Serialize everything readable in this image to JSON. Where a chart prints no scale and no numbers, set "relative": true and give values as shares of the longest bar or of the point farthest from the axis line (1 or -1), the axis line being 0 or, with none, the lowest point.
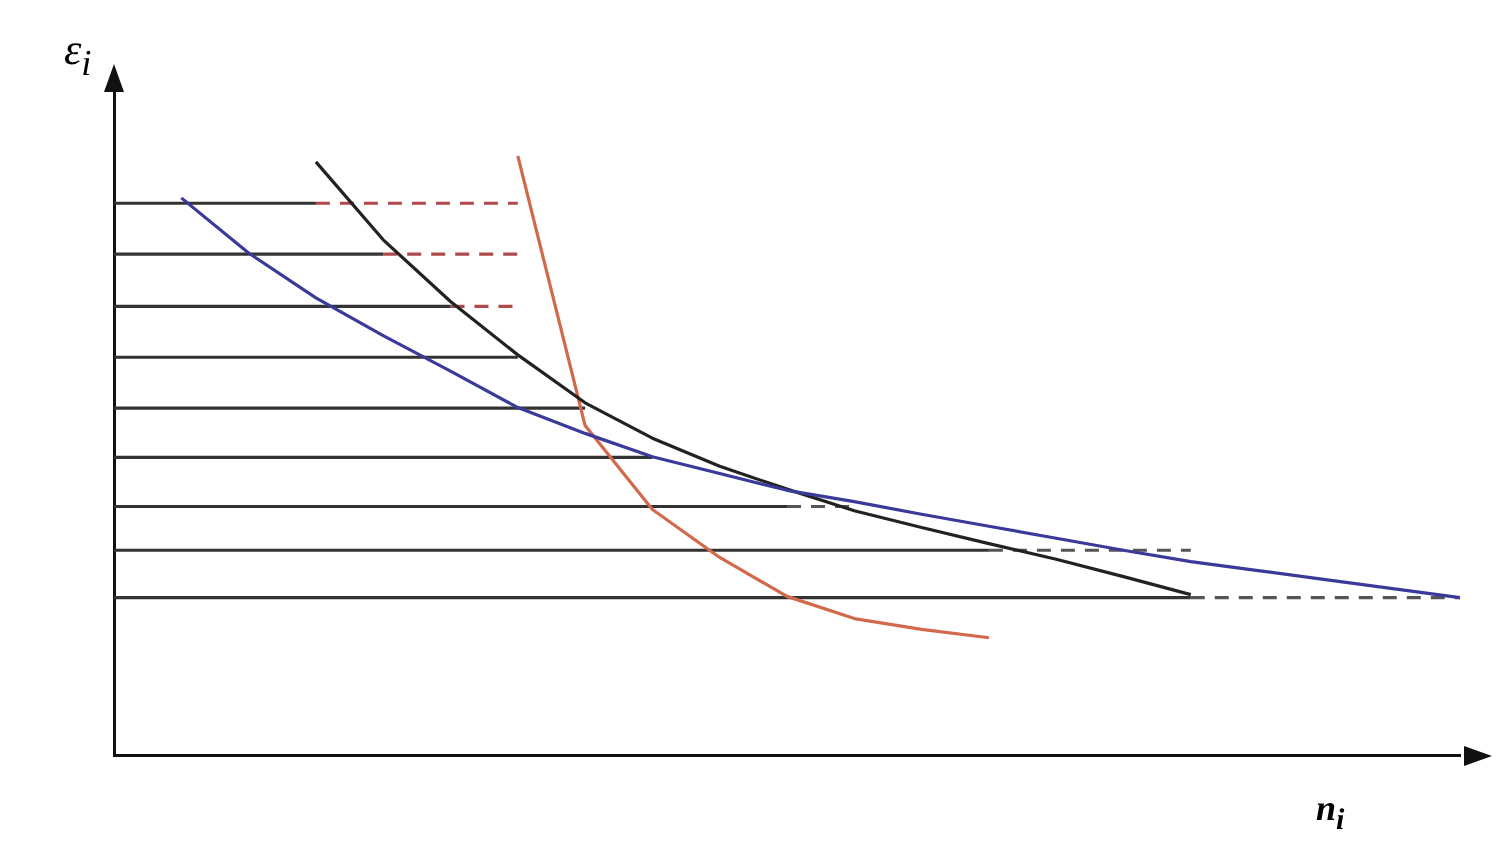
{
  "chart_data": {
    "type": "line",
    "relative": true,
    "xlabel": "n$_{i}$",
    "ylabel": "ε$_{i}$",
    "legend": false,
    "grid": false,
    "marker": "none",
    "categories": [
      null,
      null,
      null,
      null,
      null,
      null,
      null,
      null,
      null,
      null,
      null,
      null,
      null,
      null,
      null,
      null,
      null,
      null,
      null,
      null,
      null
    ],
    "series": [
      {
        "type": "line",
        "color": "#3a3a9a",
        "line_style": "solid",
        "values": [
          null,
          0.93,
          0.838,
          0.763,
          0.7,
          0.641,
          0.58,
          0.537,
          0.498,
          0.47,
          0.442,
          0.423,
          0.402,
          0.382,
          0.362,
          0.342,
          0.323,
          0.308,
          0.293,
          0.278,
          0.263
        ]
      },
      {
        "type": "line",
        "color": "#222222",
        "line_style": "solid",
        "values": [
          null,
          null,
          null,
          0.99,
          0.86,
          0.757,
          0.668,
          0.588,
          0.529,
          0.482,
          0.444,
          0.408,
          0.38,
          0.353,
          0.327,
          0.298,
          0.268,
          null,
          null,
          null,
          null
        ]
      },
      {
        "type": "line",
        "color": "#d2694a",
        "line_style": "solid",
        "values": [
          null,
          null,
          null,
          null,
          null,
          null,
          1.0,
          0.55,
          0.41,
          0.33,
          0.265,
          0.228,
          0.21,
          0.196,
          null,
          null,
          null,
          null,
          null,
          null,
          null
        ]
      },
      {
        "type": "line",
        "color": "#333333",
        "line_style": "solid",
        "values": [
          0.921,
          0.921,
          0.921,
          0.921,
          null,
          null,
          null,
          null,
          null,
          null,
          null,
          null,
          null,
          null,
          null,
          null,
          null,
          null,
          null,
          null,
          null
        ]
      },
      {
        "type": "line",
        "color": "#333333",
        "line_style": "solid",
        "values": [
          0.836,
          0.836,
          0.836,
          0.836,
          0.836,
          null,
          null,
          null,
          null,
          null,
          null,
          null,
          null,
          null,
          null,
          null,
          null,
          null,
          null,
          null,
          null
        ]
      },
      {
        "type": "line",
        "color": "#333333",
        "line_style": "solid",
        "values": [
          0.749,
          0.749,
          0.749,
          0.749,
          0.749,
          0.749,
          null,
          null,
          null,
          null,
          null,
          null,
          null,
          null,
          null,
          null,
          null,
          null,
          null,
          null,
          null
        ]
      },
      {
        "type": "line",
        "color": "#333333",
        "line_style": "solid",
        "values": [
          0.664,
          0.664,
          0.664,
          0.664,
          0.664,
          0.664,
          0.664,
          null,
          null,
          null,
          null,
          null,
          null,
          null,
          null,
          null,
          null,
          null,
          null,
          null,
          null
        ]
      },
      {
        "type": "line",
        "color": "#333333",
        "line_style": "solid",
        "values": [
          0.579,
          0.579,
          0.579,
          0.579,
          0.579,
          0.579,
          0.579,
          0.579,
          null,
          null,
          null,
          null,
          null,
          null,
          null,
          null,
          null,
          null,
          null,
          null,
          null
        ]
      },
      {
        "type": "line",
        "color": "#333333",
        "line_style": "solid",
        "values": [
          0.497,
          0.497,
          0.497,
          0.497,
          0.497,
          0.497,
          0.497,
          0.497,
          0.497,
          null,
          null,
          null,
          null,
          null,
          null,
          null,
          null,
          null,
          null,
          null,
          null
        ]
      },
      {
        "type": "line",
        "color": "#333333",
        "line_style": "solid",
        "values": [
          0.415,
          0.415,
          0.415,
          0.415,
          0.415,
          0.415,
          0.415,
          0.415,
          0.415,
          0.415,
          0.415,
          null,
          null,
          null,
          null,
          null,
          null,
          null,
          null,
          null,
          null
        ]
      },
      {
        "type": "line",
        "color": "#333333",
        "line_style": "solid",
        "values": [
          0.342,
          0.342,
          0.342,
          0.342,
          0.342,
          0.342,
          0.342,
          0.342,
          0.342,
          0.342,
          0.342,
          0.342,
          0.342,
          0.342,
          null,
          null,
          null,
          null,
          null,
          null,
          null
        ]
      },
      {
        "type": "line",
        "color": "#333333",
        "line_style": "solid",
        "values": [
          0.263,
          0.263,
          0.263,
          0.263,
          0.263,
          0.263,
          0.263,
          0.263,
          0.263,
          0.263,
          0.263,
          0.263,
          0.263,
          0.263,
          0.263,
          0.263,
          0.263,
          null,
          null,
          null,
          null
        ]
      },
      {
        "type": "line",
        "color": "#b04a4a",
        "line_style": "dashed",
        "values": [
          null,
          null,
          null,
          0.921,
          0.921,
          0.921,
          0.921,
          null,
          null,
          null,
          null,
          null,
          null,
          null,
          null,
          null,
          null,
          null,
          null,
          null,
          null
        ]
      },
      {
        "type": "line",
        "color": "#b04a4a",
        "line_style": "dashed",
        "values": [
          null,
          null,
          null,
          null,
          0.836,
          0.836,
          0.836,
          null,
          null,
          null,
          null,
          null,
          null,
          null,
          null,
          null,
          null,
          null,
          null,
          null,
          null
        ]
      },
      {
        "type": "line",
        "color": "#b04a4a",
        "line_style": "dashed",
        "values": [
          null,
          null,
          null,
          null,
          null,
          0.749,
          0.749,
          null,
          null,
          null,
          null,
          null,
          null,
          null,
          null,
          null,
          null,
          null,
          null,
          null,
          null
        ]
      },
      {
        "type": "line",
        "color": "#555555",
        "line_style": "dashed",
        "values": [
          null,
          null,
          null,
          null,
          null,
          null,
          null,
          null,
          null,
          null,
          0.415,
          0.415,
          null,
          null,
          null,
          null,
          null,
          null,
          null,
          null,
          null
        ]
      },
      {
        "type": "line",
        "color": "#555555",
        "line_style": "dashed",
        "values": [
          null,
          null,
          null,
          null,
          null,
          null,
          null,
          null,
          null,
          null,
          null,
          null,
          null,
          0.342,
          0.342,
          0.342,
          0.342,
          null,
          null,
          null,
          null
        ]
      },
      {
        "type": "line",
        "color": "#555555",
        "line_style": "dashed",
        "values": [
          null,
          null,
          null,
          null,
          null,
          null,
          null,
          null,
          null,
          null,
          null,
          null,
          null,
          null,
          null,
          null,
          0.263,
          0.263,
          0.263,
          0.263,
          0.263
        ]
      }
    ]
  }
}
